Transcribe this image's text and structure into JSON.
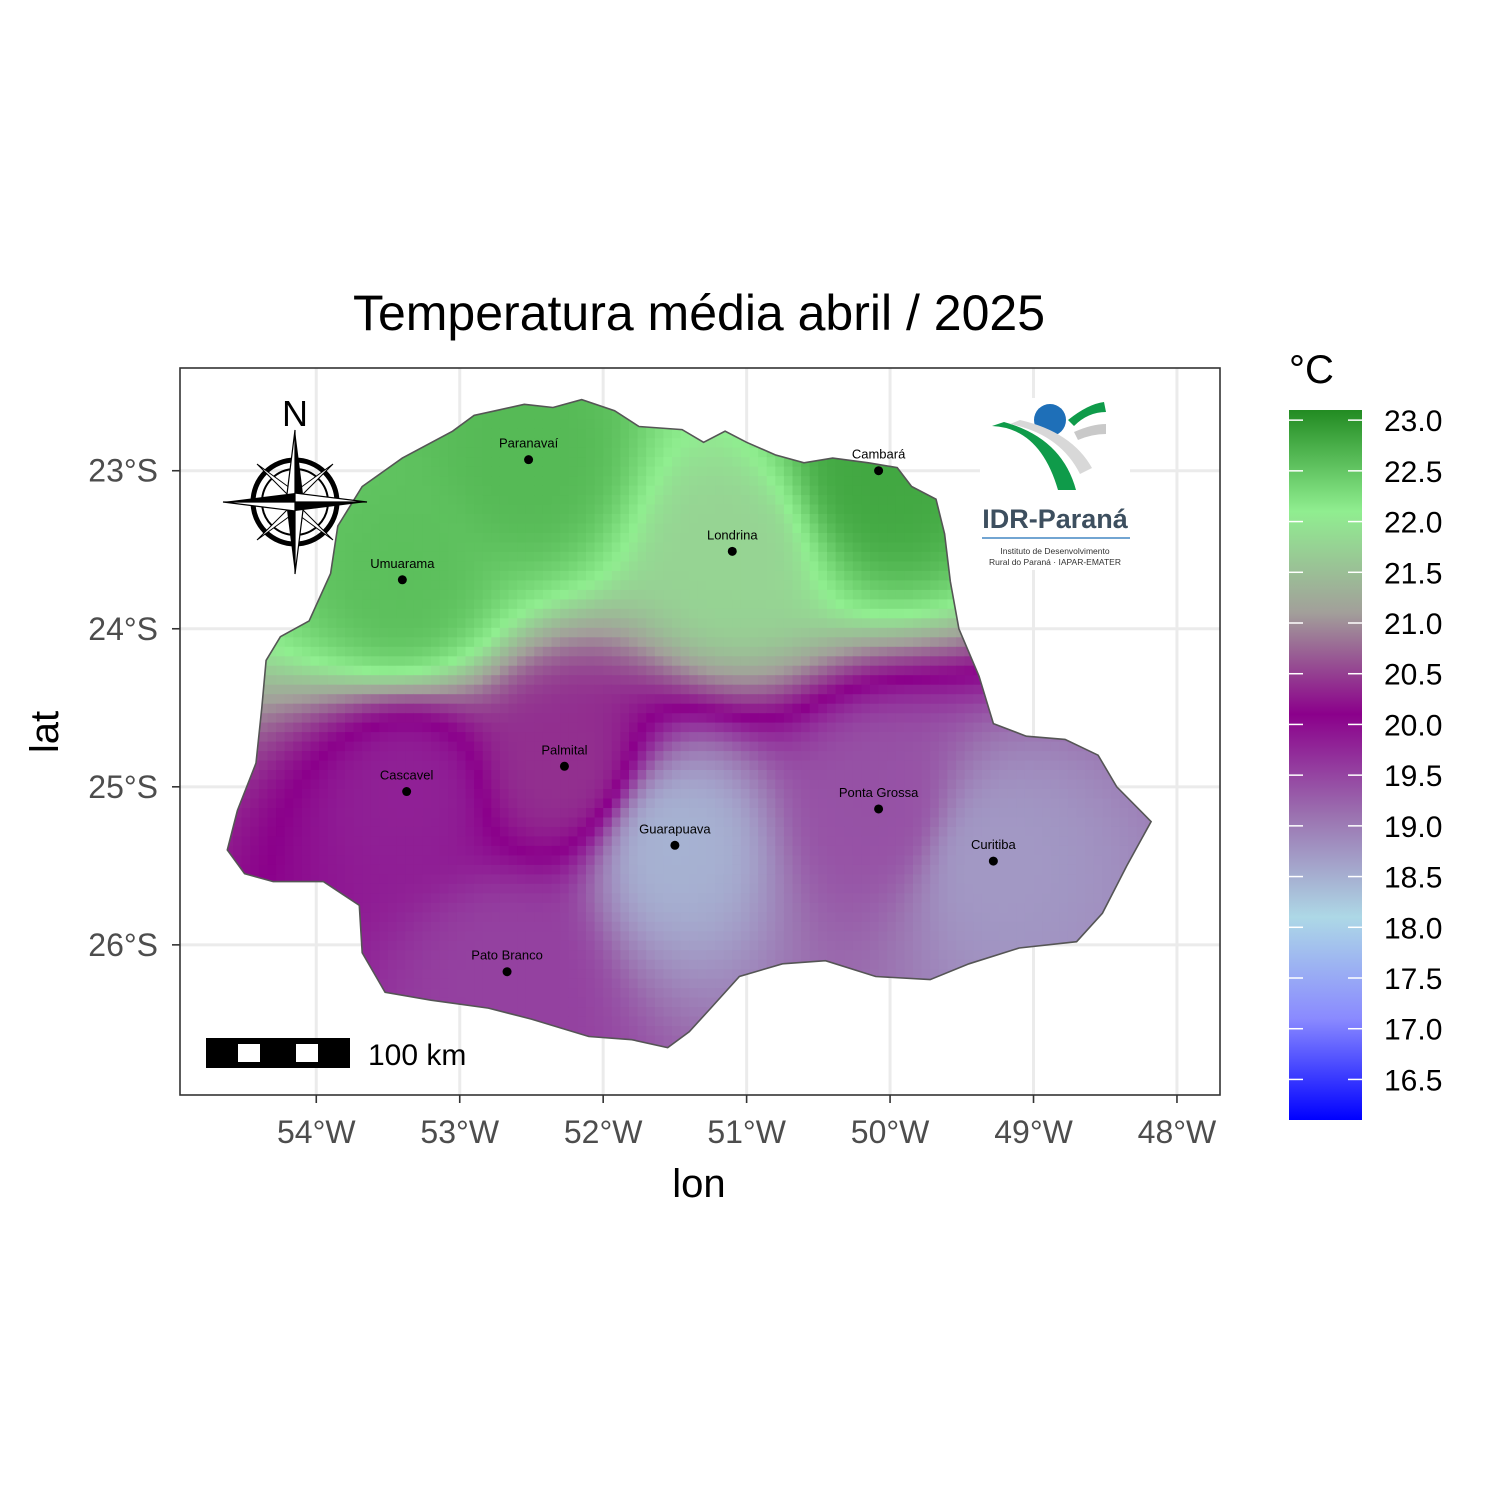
{
  "title": "Temperatura média abril / 2025",
  "axes": {
    "x_title": "lon",
    "y_title": "lat",
    "x_ticks": [
      "54°W",
      "53°W",
      "52°W",
      "51°W",
      "50°W",
      "49°W",
      "48°W"
    ],
    "y_ticks": [
      "23°S",
      "24°S",
      "25°S",
      "26°S"
    ]
  },
  "legend": {
    "title": "°C",
    "labels": [
      "23.0",
      "22.5",
      "22.0",
      "21.5",
      "21.0",
      "20.5",
      "20.0",
      "19.5",
      "19.0",
      "18.5",
      "18.0",
      "17.5",
      "17.0",
      "16.5"
    ],
    "range": [
      16.1,
      23.1
    ],
    "colors": [
      "#0000ff",
      "#8a8aff",
      "#add8e6",
      "#9b72b0",
      "#8b008b",
      "#a29f9a",
      "#90ee90",
      "#228b22"
    ]
  },
  "cities": [
    {
      "name": "Paranavaí",
      "lon": -52.52,
      "lat": -22.93
    },
    {
      "name": "Cambará",
      "lon": -50.08,
      "lat": -23.0
    },
    {
      "name": "Londrina",
      "lon": -51.1,
      "lat": -23.51
    },
    {
      "name": "Umuarama",
      "lon": -53.4,
      "lat": -23.69
    },
    {
      "name": "Palmital",
      "lon": -52.27,
      "lat": -24.87
    },
    {
      "name": "Cascavel",
      "lon": -53.37,
      "lat": -25.03
    },
    {
      "name": "Ponta Grossa",
      "lon": -50.08,
      "lat": -25.14
    },
    {
      "name": "Guarapuava",
      "lon": -51.5,
      "lat": -25.37
    },
    {
      "name": "Curitiba",
      "lon": -49.28,
      "lat": -25.47
    },
    {
      "name": "Pato Branco",
      "lon": -52.67,
      "lat": -26.17
    }
  ],
  "north_arrow_label": "N",
  "scale_bar_label": "100 km",
  "logo": {
    "name": "IDR-Paraná",
    "subtitle_line1": "Instituto de Desenvolvimento",
    "subtitle_line2": "Rural do Paraná · IAPAR-EMATER"
  },
  "chart_data": {
    "type": "heatmap",
    "title": "Temperatura média abril / 2025",
    "xlabel": "lon",
    "ylabel": "lat",
    "xlim": [
      -54.95,
      -47.7
    ],
    "ylim": [
      -26.95,
      -22.35
    ],
    "zlim": [
      16.1,
      23.1
    ],
    "station_values": [
      {
        "name": "Paranavaí",
        "value": 22.3
      },
      {
        "name": "Cambará",
        "value": 22.6
      },
      {
        "name": "Londrina",
        "value": 21.1
      },
      {
        "name": "Umuarama",
        "value": 22.2
      },
      {
        "name": "Palmital",
        "value": 19.8
      },
      {
        "name": "Cascavel",
        "value": 19.3
      },
      {
        "name": "Ponta Grossa",
        "value": 19.0
      },
      {
        "name": "Guarapuava",
        "value": 18.3
      },
      {
        "name": "Curitiba",
        "value": 18.5
      },
      {
        "name": "Pato Branco",
        "value": 19.1
      }
    ]
  }
}
